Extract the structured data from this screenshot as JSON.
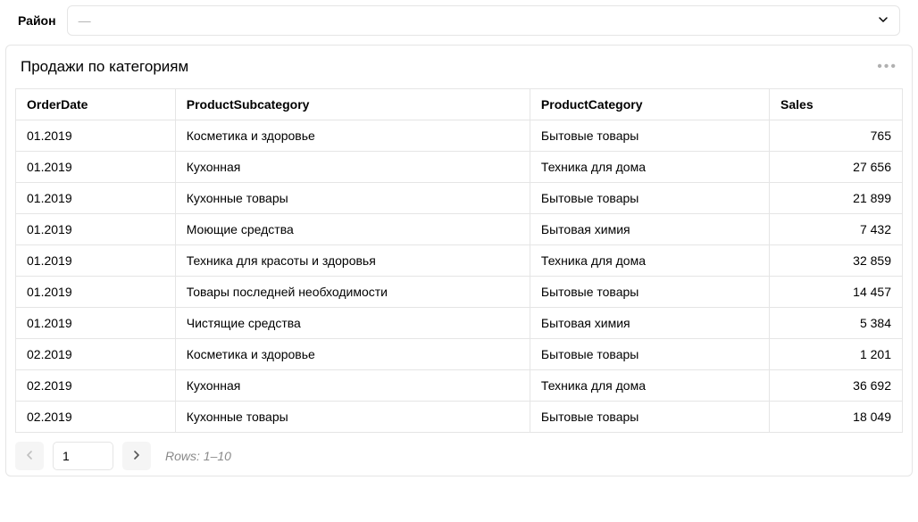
{
  "filter": {
    "label": "Район",
    "placeholder": "—"
  },
  "panel": {
    "title": "Продажи по категориям"
  },
  "table": {
    "columns": [
      "OrderDate",
      "ProductSubcategory",
      "ProductCategory",
      "Sales"
    ],
    "rows": [
      [
        "01.2019",
        "Косметика и здоровье",
        "Бытовые товары",
        "765"
      ],
      [
        "01.2019",
        "Кухонная",
        "Техника для дома",
        "27 656"
      ],
      [
        "01.2019",
        "Кухонные товары",
        "Бытовые товары",
        "21 899"
      ],
      [
        "01.2019",
        "Моющие средства",
        "Бытовая химия",
        "7 432"
      ],
      [
        "01.2019",
        "Техника для красоты и здоровья",
        "Техника для дома",
        "32 859"
      ],
      [
        "01.2019",
        "Товары последней необходимости",
        "Бытовые товары",
        "14 457"
      ],
      [
        "01.2019",
        "Чистящие средства",
        "Бытовая химия",
        "5 384"
      ],
      [
        "02.2019",
        "Косметика и здоровье",
        "Бытовые товары",
        "1 201"
      ],
      [
        "02.2019",
        "Кухонная",
        "Техника для дома",
        "36 692"
      ],
      [
        "02.2019",
        "Кухонные товары",
        "Бытовые товары",
        "18 049"
      ]
    ]
  },
  "pagination": {
    "page": "1",
    "rows_label": "Rows: 1–10"
  }
}
